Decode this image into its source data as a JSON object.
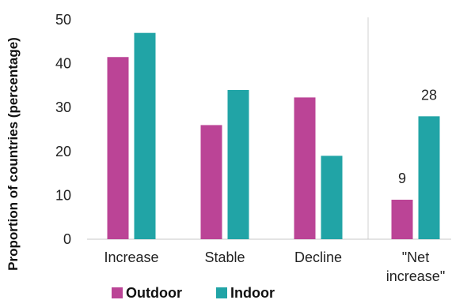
{
  "chart_data": {
    "type": "bar",
    "categories": [
      "Increase",
      "Stable",
      "Decline",
      "\"Net increase\""
    ],
    "category_lines": [
      [
        "Increase"
      ],
      [
        "Stable"
      ],
      [
        "Decline"
      ],
      [
        "\"Net",
        "increase\""
      ]
    ],
    "series": [
      {
        "name": "Outdoor",
        "values": [
          41.5,
          26,
          32.3,
          9
        ],
        "color": "#bb4496"
      },
      {
        "name": "Indoor",
        "values": [
          47,
          34,
          19,
          28
        ],
        "color": "#21a4a6"
      }
    ],
    "data_labels": [
      {
        "series": 0,
        "category": 3,
        "text": "9"
      },
      {
        "series": 1,
        "category": 3,
        "text": "28"
      }
    ],
    "title": "",
    "xlabel": "",
    "ylabel": "Proportion of countries (percentage)",
    "ylim": [
      0,
      50
    ],
    "yticks": [
      0,
      10,
      20,
      30,
      40,
      50
    ],
    "grid": "vertical separator before last category",
    "legend_position": "bottom-left"
  }
}
